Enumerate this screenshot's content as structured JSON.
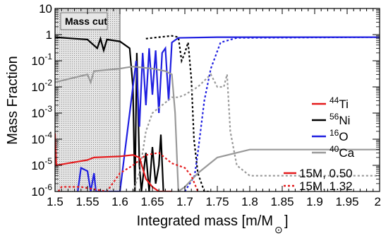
{
  "chart_data": {
    "type": "line",
    "xlabel": "Integrated mass [m/M",
    "xlabel_sub": "⊙",
    "xlabel_close": "]",
    "ylabel": "Mass Fraction",
    "xlim": [
      1.5,
      2.0
    ],
    "ylim_log10": [
      -6,
      1
    ],
    "yscale": "log",
    "x_ticks": [
      "1.5",
      "1.55",
      "1.6",
      "1.65",
      "1.7",
      "1.75",
      "1.8",
      "1.85",
      "1.9",
      "1.95",
      "2"
    ],
    "y_ticks": [
      {
        "base": "10",
        "exp": "-6"
      },
      {
        "base": "10",
        "exp": "-5"
      },
      {
        "base": "10",
        "exp": "-4"
      },
      {
        "base": "10",
        "exp": "-3"
      },
      {
        "base": "10",
        "exp": "-2"
      },
      {
        "base": "10",
        "exp": "-1"
      },
      {
        "base": "1",
        "exp": ""
      },
      {
        "base": "10",
        "exp": ""
      }
    ],
    "mass_cut": {
      "label": "Mass cut",
      "x_range": [
        1.5,
        1.6
      ]
    },
    "legend_species": [
      {
        "mass": "44",
        "symbol": "Ti",
        "color": "#e41a1c"
      },
      {
        "mass": "56",
        "symbol": "Ni",
        "color": "#000000"
      },
      {
        "mass": "16",
        "symbol": "O",
        "color": "#1f1fe0"
      },
      {
        "mass": "40",
        "symbol": "Ca",
        "color": "#999999"
      }
    ],
    "legend_models": [
      {
        "label": "15M, 0.50",
        "dash": "solid",
        "color": "#e41a1c"
      },
      {
        "label": "15M, 1.32",
        "dash": "dotted",
        "color": "#e41a1c"
      }
    ],
    "series": [
      {
        "species": "Ni56",
        "model": "15M, 0.50",
        "color": "#000000",
        "dash": "solid",
        "points": [
          [
            1.5,
            0.8
          ],
          [
            1.53,
            0.7
          ],
          [
            1.55,
            0.65
          ],
          [
            1.565,
            0.3
          ],
          [
            1.57,
            0.7
          ],
          [
            1.575,
            0.25
          ],
          [
            1.58,
            0.65
          ],
          [
            1.6,
            0.55
          ],
          [
            1.615,
            0.3
          ],
          [
            1.62,
            0.01
          ],
          [
            1.623,
            1e-06
          ],
          [
            1.626,
            0.2
          ],
          [
            1.63,
            1e-05
          ],
          [
            1.633,
            1e-06
          ],
          [
            1.64,
            3e-05
          ],
          [
            1.645,
            1e-06
          ],
          [
            1.65,
            5e-05
          ],
          [
            1.655,
            2e-06
          ],
          [
            1.66,
            1e-05
          ],
          [
            1.663,
            0.00015
          ],
          [
            1.667,
            1e-06
          ],
          [
            1.67,
            1e-06
          ]
        ]
      },
      {
        "species": "Ni56",
        "model": "15M, 1.32",
        "color": "#000000",
        "dash": "dotted",
        "points": [
          [
            1.64,
            0.7
          ],
          [
            1.66,
            0.8
          ],
          [
            1.68,
            0.9
          ],
          [
            1.69,
            0.8
          ],
          [
            1.695,
            0.1
          ],
          [
            1.7,
            0.2
          ],
          [
            1.705,
            0.5
          ],
          [
            1.71,
            0.02
          ],
          [
            1.714,
            0.0001
          ],
          [
            1.72,
            5e-06
          ],
          [
            1.73,
            1e-06
          ],
          [
            1.74,
            1e-06
          ]
        ]
      },
      {
        "species": "O16",
        "model": "15M, 0.50",
        "color": "#1f1fe0",
        "dash": "solid",
        "points": [
          [
            1.535,
            1e-06
          ],
          [
            1.54,
            8e-06
          ],
          [
            1.55,
            6e-06
          ],
          [
            1.555,
            1e-06
          ],
          [
            1.56,
            5e-06
          ],
          [
            1.563,
            1e-06
          ],
          [
            1.6,
            1e-06
          ],
          [
            1.62,
            0.01
          ],
          [
            1.625,
            0.1
          ],
          [
            1.63,
            0.0003
          ],
          [
            1.635,
            0.2
          ],
          [
            1.64,
            0.002
          ],
          [
            1.645,
            0.3
          ],
          [
            1.65,
            0.005
          ],
          [
            1.655,
            0.25
          ],
          [
            1.66,
            0.001
          ],
          [
            1.665,
            0.2
          ],
          [
            1.67,
            0.3
          ],
          [
            1.675,
            0.003
          ],
          [
            1.68,
            0.5
          ],
          [
            1.69,
            0.75
          ],
          [
            1.75,
            0.8
          ],
          [
            2.0,
            0.8
          ]
        ]
      },
      {
        "species": "O16",
        "model": "15M, 1.32",
        "color": "#1f1fe0",
        "dash": "dotted",
        "points": [
          [
            1.7,
            1e-06
          ],
          [
            1.715,
            4e-06
          ],
          [
            1.72,
            3e-05
          ],
          [
            1.73,
            0.003
          ],
          [
            1.74,
            0.05
          ],
          [
            1.755,
            0.5
          ],
          [
            1.78,
            0.75
          ],
          [
            2.0,
            0.8
          ]
        ]
      },
      {
        "species": "Ca40",
        "model": "15M, 0.50",
        "color": "#999999",
        "dash": "solid",
        "points": [
          [
            1.5,
            0.015
          ],
          [
            1.52,
            0.02
          ],
          [
            1.55,
            0.03
          ],
          [
            1.555,
            0.015
          ],
          [
            1.56,
            0.04
          ],
          [
            1.6,
            0.05
          ],
          [
            1.61,
            0.055
          ],
          [
            1.62,
            0.06
          ],
          [
            1.65,
            0.05
          ],
          [
            1.67,
            0.04
          ],
          [
            1.68,
            0.03
          ],
          [
            1.685,
            0.001
          ],
          [
            1.69,
            1e-06
          ],
          [
            1.7,
            1.5e-06
          ],
          [
            1.72,
            5e-06
          ],
          [
            1.75,
            2e-05
          ],
          [
            1.8,
            4e-05
          ],
          [
            2.0,
            4e-05
          ]
        ]
      },
      {
        "species": "Ca40",
        "model": "15M, 1.32",
        "color": "#999999",
        "dash": "dotted",
        "points": [
          [
            1.62,
            1e-06
          ],
          [
            1.63,
            5e-06
          ],
          [
            1.64,
            0.0002
          ],
          [
            1.65,
            0.001
          ],
          [
            1.68,
            0.004
          ],
          [
            1.69,
            0.004
          ],
          [
            1.7,
            0.005
          ],
          [
            1.72,
            0.01
          ],
          [
            1.74,
            0.03
          ],
          [
            1.75,
            0.01
          ],
          [
            1.76,
            0.01
          ],
          [
            1.765,
            0.03
          ],
          [
            1.77,
            0.0002
          ],
          [
            1.78,
            1e-05
          ],
          [
            1.8,
            4e-06
          ],
          [
            1.85,
            4e-06
          ],
          [
            2.0,
            4e-06
          ]
        ]
      },
      {
        "species": "Ti44",
        "model": "15M, 0.50",
        "color": "#e41a1c",
        "dash": "solid",
        "points": [
          [
            1.5,
            0.00017
          ],
          [
            1.502,
            1e-05
          ],
          [
            1.52,
            1.2e-05
          ],
          [
            1.55,
            1.6e-05
          ],
          [
            1.56,
            2e-05
          ],
          [
            1.6,
            2.2e-05
          ],
          [
            1.62,
            2.5e-05
          ],
          [
            1.63,
            2e-05
          ],
          [
            1.64,
            3e-06
          ],
          [
            1.65,
            1.5e-06
          ],
          [
            1.66,
            1e-06
          ],
          [
            1.68,
            1e-06
          ]
        ]
      },
      {
        "species": "Ti44",
        "model": "15M, 1.32",
        "color": "#e41a1c",
        "dash": "dotted",
        "points": [
          [
            1.505,
            1e-06
          ],
          [
            1.51,
            1.5e-06
          ],
          [
            1.52,
            1.5e-06
          ],
          [
            1.54,
            1.5e-06
          ],
          [
            1.58,
            1e-06
          ],
          [
            1.6,
            5e-06
          ],
          [
            1.62,
            1e-05
          ],
          [
            1.64,
            2.5e-05
          ],
          [
            1.66,
            3e-05
          ],
          [
            1.68,
            1.2e-05
          ],
          [
            1.7,
            8e-06
          ],
          [
            1.71,
            4e-06
          ],
          [
            1.72,
            1e-06
          ]
        ]
      }
    ]
  }
}
